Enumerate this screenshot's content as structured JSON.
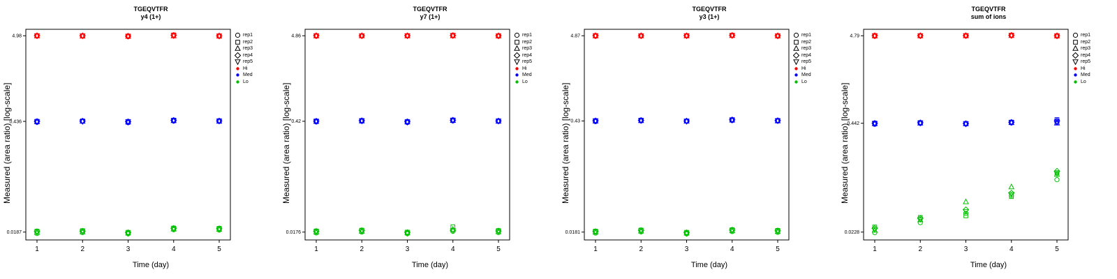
{
  "figure": {
    "background": "#FFFFFF"
  },
  "legend": {
    "reps": [
      {
        "label": "rep1",
        "symbol": "circle"
      },
      {
        "label": "rep2",
        "symbol": "square"
      },
      {
        "label": "rep3",
        "symbol": "triangle-up"
      },
      {
        "label": "rep4",
        "symbol": "diamond"
      },
      {
        "label": "rep5",
        "symbol": "triangle-down"
      }
    ],
    "levels": [
      {
        "label": "Hi",
        "color": "#FF0000"
      },
      {
        "label": "Med",
        "color": "#0000FF"
      },
      {
        "label": "Lo",
        "color": "#00C000"
      }
    ],
    "position": "right"
  },
  "chart_data": [
    {
      "type": "scatter",
      "title": "TGEQVTFR",
      "subtitle": "y4 (1+)",
      "xlabel": "Time (day)",
      "ylabel": "Measured (area ratio) [log-scale]",
      "y_scale": "log",
      "x_ticks": [
        1,
        2,
        3,
        4,
        5
      ],
      "y_tick_labels": [
        "4.98",
        "0.436",
        "0.0187"
      ],
      "y_tick_values": [
        4.98,
        0.436,
        0.0187
      ],
      "legend_position": "right",
      "series": [
        {
          "name": "Hi",
          "color": "#FF0000",
          "values_by_day": [
            [
              4.93,
              5.0,
              4.96,
              4.99,
              4.97
            ],
            [
              4.95,
              4.99,
              4.93,
              4.98,
              4.96
            ],
            [
              4.85,
              4.95,
              4.9,
              4.94,
              4.92
            ],
            [
              5.02,
              5.1,
              4.97,
              5.05,
              5.0
            ],
            [
              4.9,
              4.97,
              4.93,
              4.96,
              4.94
            ]
          ]
        },
        {
          "name": "Med",
          "color": "#0000FF",
          "values_by_day": [
            [
              0.425,
              0.438,
              0.432,
              0.436,
              0.43
            ],
            [
              0.436,
              0.442,
              0.438,
              0.44,
              0.435
            ],
            [
              0.42,
              0.435,
              0.428,
              0.432,
              0.43
            ],
            [
              0.44,
              0.452,
              0.445,
              0.45,
              0.446
            ],
            [
              0.436,
              0.444,
              0.438,
              0.442,
              0.44
            ]
          ]
        },
        {
          "name": "Lo",
          "color": "#00C000",
          "values_by_day": [
            [
              0.018,
              0.0192,
              0.0185,
              0.019,
              0.0187
            ],
            [
              0.0185,
              0.0195,
              0.0188,
              0.0192,
              0.019
            ],
            [
              0.0178,
              0.0186,
              0.0182,
              0.0184,
              0.018
            ],
            [
              0.02,
              0.021,
              0.0204,
              0.0208,
              0.0205
            ],
            [
              0.0198,
              0.0208,
              0.0202,
              0.0206,
              0.0203
            ]
          ]
        }
      ]
    },
    {
      "type": "scatter",
      "title": "TGEQVTFR",
      "subtitle": "y7 (1+)",
      "xlabel": "Time (day)",
      "ylabel": "Measured (area ratio) [log-scale]",
      "y_scale": "log",
      "x_ticks": [
        1,
        2,
        3,
        4,
        5
      ],
      "y_tick_labels": [
        "4.86",
        "0.42",
        "0.0176"
      ],
      "y_tick_values": [
        4.86,
        0.42,
        0.0176
      ],
      "legend_position": "right",
      "series": [
        {
          "name": "Hi",
          "color": "#FF0000",
          "values_by_day": [
            [
              4.8,
              4.88,
              4.84,
              4.87,
              4.85
            ],
            [
              4.82,
              4.87,
              4.84,
              4.86,
              4.85
            ],
            [
              4.83,
              4.88,
              4.85,
              4.87,
              4.86
            ],
            [
              4.88,
              4.93,
              4.86,
              4.9,
              4.89
            ],
            [
              4.8,
              4.87,
              4.83,
              4.86,
              4.84
            ]
          ]
        },
        {
          "name": "Med",
          "color": "#0000FF",
          "values_by_day": [
            [
              0.412,
              0.424,
              0.418,
              0.422,
              0.42
            ],
            [
              0.42,
              0.43,
              0.424,
              0.428,
              0.425
            ],
            [
              0.405,
              0.418,
              0.412,
              0.415,
              0.41
            ],
            [
              0.425,
              0.436,
              0.43,
              0.434,
              0.432
            ],
            [
              0.418,
              0.426,
              0.421,
              0.424,
              0.422
            ]
          ]
        },
        {
          "name": "Lo",
          "color": "#00C000",
          "values_by_day": [
            [
              0.0172,
              0.0182,
              0.0176,
              0.018,
              0.0178
            ],
            [
              0.0176,
              0.0186,
              0.018,
              0.0184,
              0.0182
            ],
            [
              0.0168,
              0.0176,
              0.0172,
              0.0174,
              0.017
            ],
            [
              0.018,
              0.0205,
              0.019,
              0.0186,
              0.0184
            ],
            [
              0.0174,
              0.0184,
              0.0178,
              0.0182,
              0.018
            ]
          ]
        }
      ]
    },
    {
      "type": "scatter",
      "title": "TGEQVTFR",
      "subtitle": "y3 (1+)",
      "xlabel": "Time (day)",
      "ylabel": "Measured (area ratio) [log-scale]",
      "y_scale": "log",
      "x_ticks": [
        1,
        2,
        3,
        4,
        5
      ],
      "y_tick_labels": [
        "4.87",
        "0.43",
        "0.0181"
      ],
      "y_tick_values": [
        4.87,
        0.43,
        0.0181
      ],
      "legend_position": "right",
      "series": [
        {
          "name": "Hi",
          "color": "#FF0000",
          "values_by_day": [
            [
              4.8,
              4.9,
              4.85,
              4.88,
              4.86
            ],
            [
              4.83,
              4.88,
              4.85,
              4.87,
              4.86
            ],
            [
              4.84,
              4.89,
              4.86,
              4.88,
              4.87
            ],
            [
              4.88,
              4.95,
              4.9,
              4.93,
              4.91
            ],
            [
              4.81,
              4.88,
              4.84,
              4.87,
              4.85
            ]
          ]
        },
        {
          "name": "Med",
          "color": "#0000FF",
          "values_by_day": [
            [
              0.422,
              0.434,
              0.428,
              0.432,
              0.43
            ],
            [
              0.43,
              0.44,
              0.434,
              0.438,
              0.435
            ],
            [
              0.424,
              0.43,
              0.427,
              0.429,
              0.426
            ],
            [
              0.435,
              0.446,
              0.44,
              0.444,
              0.442
            ],
            [
              0.428,
              0.436,
              0.431,
              0.434,
              0.432
            ]
          ]
        },
        {
          "name": "Lo",
          "color": "#00C000",
          "values_by_day": [
            [
              0.0176,
              0.0186,
              0.0181,
              0.0184,
              0.0182
            ],
            [
              0.0182,
              0.0192,
              0.0186,
              0.019,
              0.0188
            ],
            [
              0.0172,
              0.018,
              0.0176,
              0.0178,
              0.0174
            ],
            [
              0.0184,
              0.0194,
              0.0188,
              0.0192,
              0.019
            ],
            [
              0.018,
              0.019,
              0.0184,
              0.0188,
              0.0186
            ]
          ]
        }
      ]
    },
    {
      "type": "scatter",
      "title": "TGEQVTFR",
      "subtitle": "sum of ions",
      "xlabel": "Time (day)",
      "ylabel": "Measured (area ratio) [log-scale]",
      "y_scale": "log",
      "x_ticks": [
        1,
        2,
        3,
        4,
        5
      ],
      "y_tick_labels": [
        "4.79",
        "0.442",
        "0.0228"
      ],
      "y_tick_values": [
        4.79,
        0.442,
        0.0228
      ],
      "legend_position": "right",
      "series": [
        {
          "name": "Hi",
          "color": "#FF0000",
          "values_by_day": [
            [
              4.72,
              4.82,
              4.77,
              4.8,
              4.78
            ],
            [
              4.75,
              4.81,
              4.78,
              4.8,
              4.79
            ],
            [
              4.76,
              4.82,
              4.79,
              4.81,
              4.8
            ],
            [
              4.8,
              4.87,
              4.82,
              4.85,
              4.83
            ],
            [
              4.73,
              4.8,
              4.76,
              4.79,
              4.77
            ]
          ]
        },
        {
          "name": "Med",
          "color": "#0000FF",
          "values_by_day": [
            [
              0.43,
              0.444,
              0.437,
              0.442,
              0.439
            ],
            [
              0.44,
              0.45,
              0.444,
              0.448,
              0.445
            ],
            [
              0.432,
              0.44,
              0.436,
              0.438,
              0.434
            ],
            [
              0.446,
              0.456,
              0.45,
              0.454,
              0.452
            ],
            [
              0.452,
              0.488,
              0.444,
              0.47,
              0.46
            ]
          ]
        },
        {
          "name": "Lo",
          "color": "#00C000",
          "values_by_day": [
            [
              0.0225,
              0.0262,
              0.024,
              0.0252,
              0.0246
            ],
            [
              0.0295,
              0.034,
              0.0318,
              0.033,
              0.0324
            ],
            [
              0.038,
              0.0355,
              0.052,
              0.042,
              0.04
            ],
            [
              0.062,
              0.06,
              0.078,
              0.066,
              0.064
            ],
            [
              0.095,
              0.115,
              0.11,
              0.12,
              0.112
            ]
          ]
        }
      ]
    }
  ]
}
